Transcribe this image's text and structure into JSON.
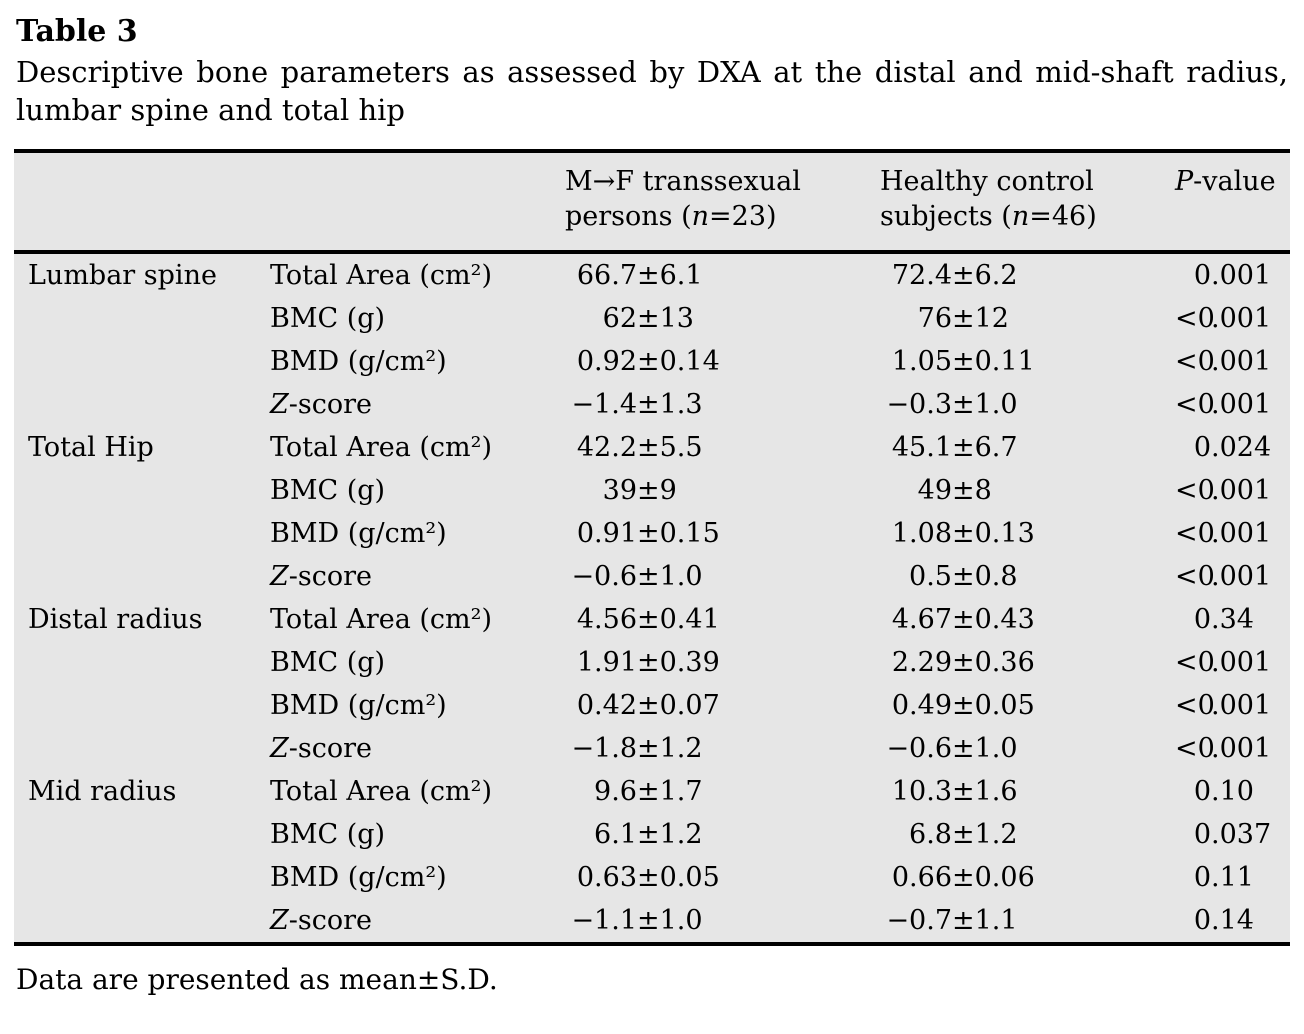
{
  "page": {
    "title": "Table 3",
    "caption": "Descriptive bone parameters as assessed by DXA at the distal and mid-shaft radius, lumbar spine and total hip",
    "footnote": "Data are presented as mean±S.D."
  },
  "colors": {
    "table_background": "#e6e6e6",
    "rule": "#000000",
    "page_background": "#ffffff"
  },
  "table": {
    "header": {
      "group1": {
        "line1": "M→F transsexual",
        "pre": "persons (",
        "n": "n",
        "post": "=23)"
      },
      "group2": {
        "line1": "Healthy control",
        "pre": "subjects (",
        "n": "n",
        "post": "=46)"
      },
      "pvalue": {
        "italic": "P",
        "rest": "-value"
      }
    },
    "rows": [
      {
        "region": "Lumbar spine",
        "param_italic": "",
        "param": "Total Area (cm²)",
        "v1": "66.7±6.1",
        "v2": "72.4±6.2",
        "p": "0.001"
      },
      {
        "region": "",
        "param_italic": "",
        "param": "BMC (g)",
        "v1": "62±13",
        "v2": "76±12",
        "p": "<0.001"
      },
      {
        "region": "",
        "param_italic": "",
        "param": "BMD (g/cm²)",
        "v1": "0.92±0.14",
        "v2": "1.05±0.11",
        "p": "<0.001"
      },
      {
        "region": "",
        "param_italic": "Z",
        "param": "-score",
        "v1": "−1.4±1.3",
        "v2": "−0.3±1.0",
        "p": "<0.001"
      },
      {
        "region": "Total Hip",
        "param_italic": "",
        "param": "Total Area (cm²)",
        "v1": "42.2±5.5",
        "v2": "45.1±6.7",
        "p": "0.024"
      },
      {
        "region": "",
        "param_italic": "",
        "param": "BMC (g)",
        "v1": "39±9",
        "v2": "49±8",
        "p": "<0.001"
      },
      {
        "region": "",
        "param_italic": "",
        "param": "BMD (g/cm²)",
        "v1": "0.91±0.15",
        "v2": "1.08±0.13",
        "p": "<0.001"
      },
      {
        "region": "",
        "param_italic": "Z",
        "param": "-score",
        "v1": "−0.6±1.0",
        "v2": "0.5±0.8",
        "p": "<0.001"
      },
      {
        "region": "Distal radius",
        "param_italic": "",
        "param": "Total Area (cm²)",
        "v1": "4.56±0.41",
        "v2": "4.67±0.43",
        "p": "0.34"
      },
      {
        "region": "",
        "param_italic": "",
        "param": "BMC (g)",
        "v1": "1.91±0.39",
        "v2": "2.29±0.36",
        "p": "<0.001"
      },
      {
        "region": "",
        "param_italic": "",
        "param": "BMD (g/cm²)",
        "v1": "0.42±0.07",
        "v2": "0.49±0.05",
        "p": "<0.001"
      },
      {
        "region": "",
        "param_italic": "Z",
        "param": "-score",
        "v1": "−1.8±1.2",
        "v2": "−0.6±1.0",
        "p": "<0.001"
      },
      {
        "region": "Mid radius",
        "param_italic": "",
        "param": "Total Area (cm²)",
        "v1": "9.6±1.7",
        "v2": "10.3±1.6",
        "p": "0.10"
      },
      {
        "region": "",
        "param_italic": "",
        "param": "BMC (g)",
        "v1": "6.1±1.2",
        "v2": "6.8±1.2",
        "p": "0.037"
      },
      {
        "region": "",
        "param_italic": "",
        "param": "BMD (g/cm²)",
        "v1": "0.63±0.05",
        "v2": "0.66±0.06",
        "p": "0.11"
      },
      {
        "region": "",
        "param_italic": "Z",
        "param": "-score",
        "v1": "−1.1±1.0",
        "v2": "−0.7±1.1",
        "p": "0.14"
      }
    ]
  }
}
